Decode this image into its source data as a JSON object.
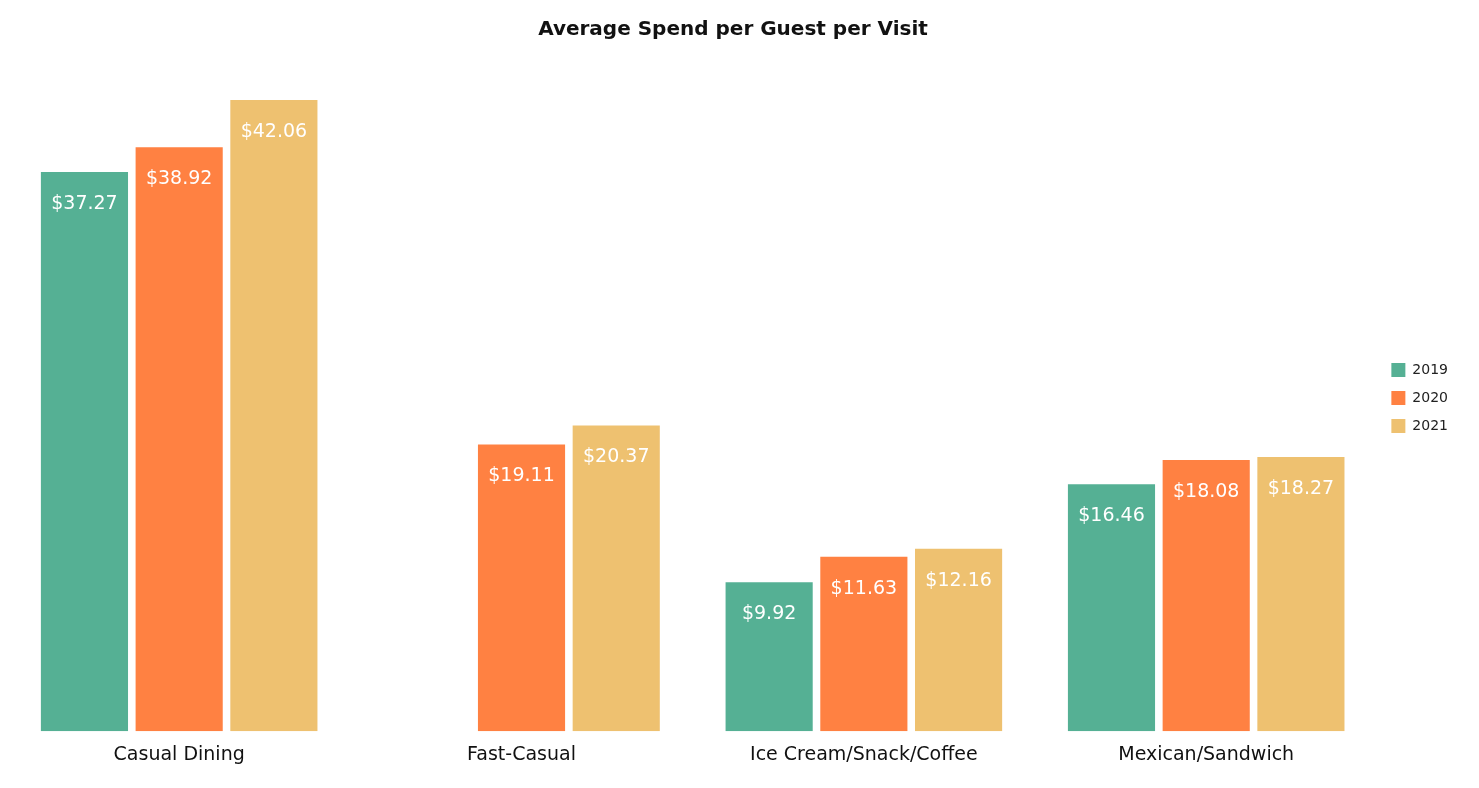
{
  "chart_data": {
    "type": "bar",
    "title": "Average Spend per Guest per Visit",
    "categories": [
      "Casual Dining",
      "Fast-Casual",
      "Ice Cream/Snack/Coffee",
      "Mexican/Sandwich"
    ],
    "series": [
      {
        "name": "2019",
        "color": "#55b094",
        "values": [
          37.27,
          null,
          9.92,
          16.46
        ],
        "value_labels": [
          "$37.27",
          null,
          "$9.92",
          "$16.46"
        ]
      },
      {
        "name": "2020",
        "color": "#ff8142",
        "values": [
          38.92,
          19.11,
          11.63,
          18.08
        ],
        "value_labels": [
          "$38.92",
          "$19.11",
          "$11.63",
          "$18.08"
        ]
      },
      {
        "name": "2021",
        "color": "#eec170",
        "values": [
          42.06,
          20.37,
          12.16,
          18.27
        ],
        "value_labels": [
          "$42.06",
          "$20.37",
          "$12.16",
          "$18.27"
        ]
      }
    ],
    "legend": "right",
    "grid": false,
    "tick_labels": "x"
  }
}
